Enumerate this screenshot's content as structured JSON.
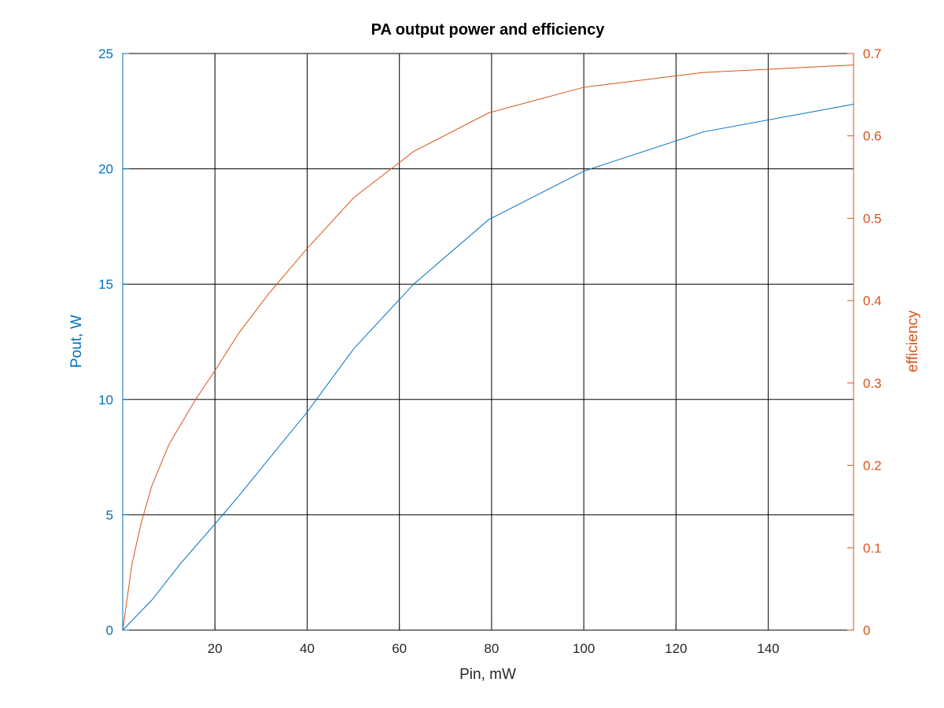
{
  "chart_data": {
    "type": "line",
    "title": "PA output power and efficiency",
    "xlabel": "Pin, mW",
    "ylabel_left": "Pout, W",
    "ylabel_right": "efficiency",
    "xlim": [
      0,
      158.5
    ],
    "ylim_left": [
      0,
      25
    ],
    "ylim_right": [
      0,
      0.7
    ],
    "x_ticks": [
      20,
      40,
      60,
      80,
      100,
      120,
      140
    ],
    "y_left_ticks": [
      0,
      5,
      10,
      15,
      20,
      25
    ],
    "y_right_ticks": [
      0,
      0.1,
      0.2,
      0.3,
      0.4,
      0.5,
      0.6,
      0.7
    ],
    "grid": true,
    "colors": {
      "left_axis": "#0072bd",
      "right_axis": "#d95319",
      "grid": "#000000"
    },
    "series": [
      {
        "axis": "left",
        "color": "#0072bd",
        "x": [
          0,
          6.3,
          12.6,
          20,
          25.1,
          31.6,
          39.8,
          50.1,
          63.1,
          79.4,
          100,
          125.9,
          158.5
        ],
        "y": [
          0,
          1.3,
          2.9,
          4.6,
          5.8,
          7.4,
          9.4,
          12.2,
          15.0,
          17.8,
          19.9,
          21.6,
          22.8
        ]
      },
      {
        "axis": "right",
        "color": "#d95319",
        "x": [
          0,
          2,
          4,
          6.3,
          10,
          15.8,
          20,
          25.1,
          31.6,
          39.8,
          50.1,
          63.1,
          79.4,
          100,
          125.9,
          158.5
        ],
        "y": [
          0,
          0.08,
          0.13,
          0.175,
          0.225,
          0.28,
          0.315,
          0.36,
          0.408,
          0.462,
          0.525,
          0.581,
          0.628,
          0.659,
          0.677,
          0.686
        ]
      }
    ]
  }
}
